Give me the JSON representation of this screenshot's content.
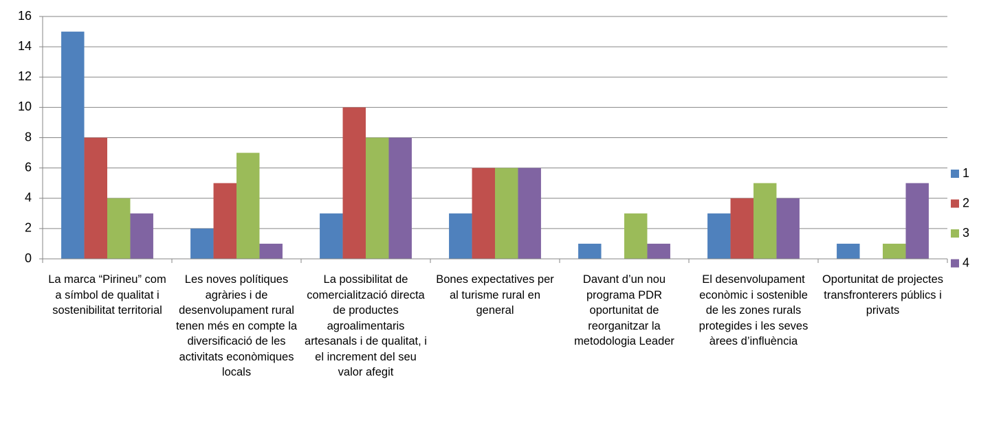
{
  "chart_data": {
    "type": "bar",
    "categories": [
      "La marca “Pirineu” com a símbol de qualitat i sostenibilitat territorial",
      "Les noves polítiques agràries i de desenvolupament rural tenen més en compte la diversificació de les activitats econòmiques locals",
      "La possibilitat de comercialització directa de productes agroalimentaris artesanals i de qualitat, i el increment del seu valor afegit",
      "Bones expectatives per al turisme rural en general",
      "Davant d’un nou programa PDR oportunitat de reorganitzar la metodologia Leader",
      "El desenvolupament econòmic i sostenible de les zones rurals protegides i les seves àrees d’influència",
      "Oportunitat de projectes transfronterers públics i privats"
    ],
    "series": [
      {
        "name": "1",
        "color": "#4f81bd",
        "values": [
          15,
          2,
          3,
          3,
          1,
          3,
          1
        ]
      },
      {
        "name": "2",
        "color": "#c0504d",
        "values": [
          8,
          5,
          10,
          6,
          0,
          4,
          0
        ]
      },
      {
        "name": "3",
        "color": "#9bbb59",
        "values": [
          4,
          7,
          8,
          6,
          3,
          5,
          1
        ]
      },
      {
        "name": "4",
        "color": "#8064a2",
        "values": [
          3,
          1,
          8,
          6,
          1,
          4,
          5
        ]
      }
    ],
    "ylim": [
      0,
      16
    ],
    "yticks": [
      0,
      2,
      4,
      6,
      8,
      10,
      12,
      14,
      16
    ],
    "grid": true,
    "legend": "right"
  }
}
